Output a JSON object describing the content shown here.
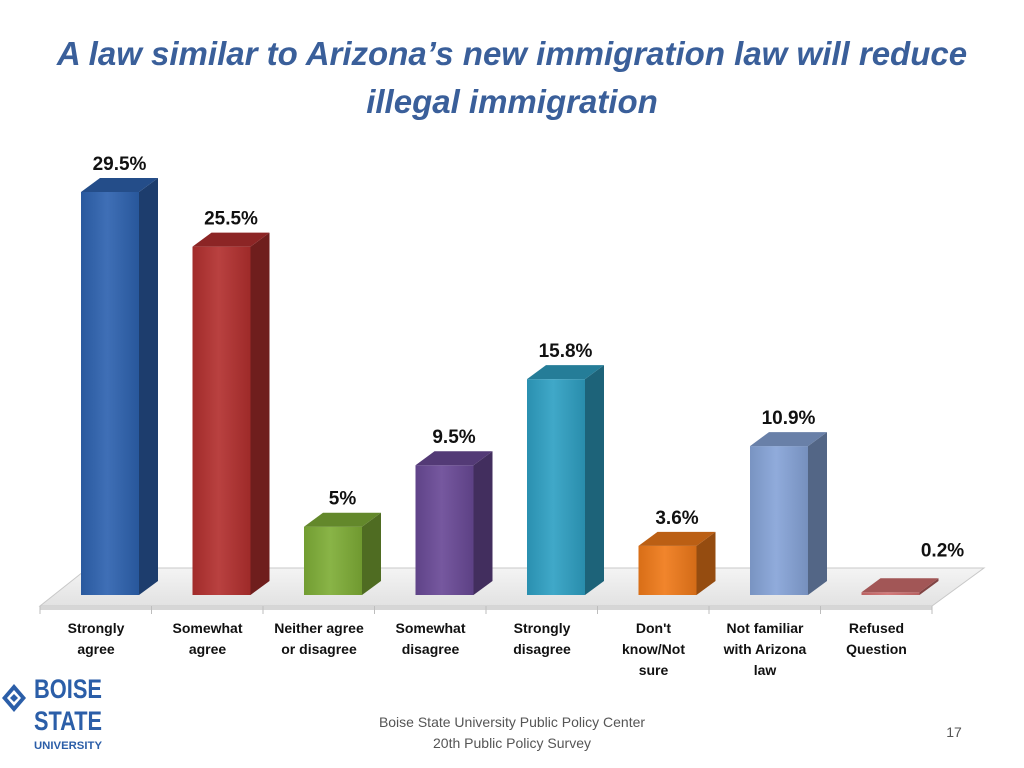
{
  "title": "A law similar to Arizona’s new immigration law will reduce illegal immigration",
  "chart_data": {
    "type": "bar",
    "categories": [
      [
        "Strongly",
        "agree"
      ],
      [
        "Somewhat",
        "agree"
      ],
      [
        "Neither agree",
        "or disagree"
      ],
      [
        "Somewhat",
        "disagree"
      ],
      [
        "Strongly",
        "disagree"
      ],
      [
        "Don't",
        "know/Not",
        "sure"
      ],
      [
        "Not familiar",
        "with Arizona",
        "law"
      ],
      [
        "Refused",
        "Question"
      ]
    ],
    "values": [
      29.5,
      25.5,
      5,
      9.5,
      15.8,
      3.6,
      10.9,
      0.2
    ],
    "data_labels": [
      "29.5%",
      "25.5%",
      "5%",
      "9.5%",
      "15.8%",
      "3.6%",
      "10.9%",
      "0.2%"
    ],
    "colors": [
      "#2e63b0",
      "#b3302f",
      "#7fae37",
      "#6a4a97",
      "#2fa0c3",
      "#f07a1a",
      "#86a4d8",
      "#d06e6e"
    ],
    "ylim": [
      0,
      30
    ],
    "three_d": true,
    "legend": "none",
    "grid": false
  },
  "logo": {
    "line1": "BOISE",
    "line2": "STATE",
    "line3": "UNIVERSITY"
  },
  "footer": {
    "line1": "Boise State University  Public Policy Center",
    "line2": "20th Public Policy Survey"
  },
  "page_number": "17"
}
